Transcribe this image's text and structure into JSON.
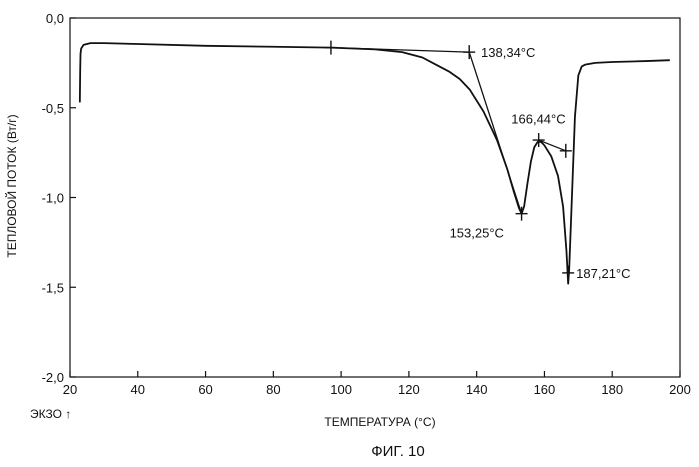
{
  "chart_data": {
    "type": "line",
    "title": "",
    "caption": "ФИГ. 10",
    "xlabel": "ТЕМПЕРАТУРА (°C)",
    "ylabel": "ТЕПЛОВОЙ ПОТОК (Вт/г)",
    "exo_label": "ЭКЗО ↑",
    "xlim": [
      20,
      200
    ],
    "ylim": [
      -2.0,
      0.0
    ],
    "x_ticks": [
      20,
      40,
      60,
      80,
      100,
      120,
      140,
      160,
      180,
      200
    ],
    "x_tick_labels": [
      "20",
      "40",
      "60",
      "80",
      "100",
      "120",
      "140",
      "160",
      "180",
      "200"
    ],
    "y_ticks": [
      0.0,
      -0.5,
      -1.0,
      -1.5,
      -2.0
    ],
    "y_tick_labels": [
      "0,0",
      "-0,5",
      "-1,0",
      "-1,5",
      "-2,0"
    ],
    "grid": false,
    "series": [
      {
        "name": "DSC heat flow",
        "x": [
          22.9,
          23.0,
          23.1,
          23.3,
          24,
          26,
          30,
          40,
          60,
          80,
          97,
          110,
          118,
          124,
          128,
          132,
          135,
          138,
          142,
          146,
          149,
          151,
          152.5,
          153.25,
          154,
          155,
          156,
          157,
          158,
          159,
          160,
          162,
          164,
          165.5,
          166.5,
          167,
          167.3,
          168,
          169,
          170,
          171,
          172,
          175,
          180,
          190,
          197
        ],
        "y": [
          -0.47,
          -0.3,
          -0.2,
          -0.17,
          -0.15,
          -0.14,
          -0.14,
          -0.145,
          -0.155,
          -0.16,
          -0.165,
          -0.175,
          -0.19,
          -0.22,
          -0.26,
          -0.3,
          -0.34,
          -0.4,
          -0.52,
          -0.68,
          -0.84,
          -0.97,
          -1.06,
          -1.09,
          -1.05,
          -0.92,
          -0.8,
          -0.72,
          -0.69,
          -0.69,
          -0.71,
          -0.77,
          -0.88,
          -1.05,
          -1.3,
          -1.48,
          -1.4,
          -1.05,
          -0.55,
          -0.32,
          -0.27,
          -0.26,
          -0.25,
          -0.245,
          -0.24,
          -0.235
        ]
      }
    ],
    "baselines": [
      {
        "name": "onset-tangent-1",
        "x": [
          97,
          137.8
        ],
        "y": [
          -0.165,
          -0.19
        ]
      },
      {
        "name": "onset-tangent-2",
        "x": [
          137.8,
          153.25
        ],
        "y": [
          -0.19,
          -1.09
        ]
      },
      {
        "name": "melt-baseline",
        "x": [
          158.3,
          166.3
        ],
        "y": [
          -0.68,
          -0.74
        ]
      }
    ],
    "markers": [
      {
        "name": "marker-97",
        "x": 97,
        "y": -0.165
      },
      {
        "name": "marker-138",
        "x": 137.8,
        "y": -0.19
      },
      {
        "name": "marker-153",
        "x": 153.25,
        "y": -1.09
      },
      {
        "name": "marker-158",
        "x": 158.3,
        "y": -0.68
      },
      {
        "name": "marker-166",
        "x": 166.3,
        "y": -0.74
      },
      {
        "name": "marker-167",
        "x": 167.0,
        "y": -1.42
      }
    ],
    "annotations": [
      {
        "name": "annotation-138",
        "text": "138,34°C",
        "x": 138.34,
        "y": -0.19,
        "anchor": "right"
      },
      {
        "name": "annotation-166",
        "text": "166,44°C",
        "x": 166.44,
        "y": -0.6,
        "anchor": "above-left"
      },
      {
        "name": "annotation-153",
        "text": "153,25°C",
        "x": 153.25,
        "y": -1.09,
        "anchor": "below-left"
      },
      {
        "name": "annotation-187",
        "text": "187,21°C",
        "x": 187.21,
        "y": -1.42,
        "anchor": "right"
      }
    ]
  }
}
